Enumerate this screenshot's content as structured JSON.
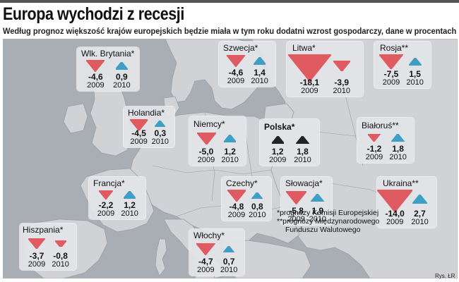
{
  "header": {
    "title": "Europa wychodzi z recesji",
    "subtitle": "Według prognoz większość krajów europejskich będzie miała w tym roku dodatni wzrost gospodarczy, dane w procentach"
  },
  "years": [
    "2009",
    "2010"
  ],
  "colors": {
    "decline": "#e05a62",
    "growth": "#3f9fc4",
    "poland": "#222222",
    "card": "#e2e4e7",
    "map_water": "#a9aeb4",
    "map_land": "#d0d2d5"
  },
  "countries": [
    {
      "id": "uk",
      "name": "Wlk. Brytania*",
      "bold": false,
      "v2009": "-4,6",
      "v2010": "0,9",
      "n2009": -4.6,
      "n2010": 0.9
    },
    {
      "id": "sweden",
      "name": "Szwecja*",
      "bold": false,
      "v2009": "-4,6",
      "v2010": "1,4",
      "n2009": -4.6,
      "n2010": 1.4
    },
    {
      "id": "lithuania",
      "name": "Litwa*",
      "bold": false,
      "v2009": "-18,1",
      "v2010": "-3,9",
      "n2009": -18.1,
      "n2010": -3.9
    },
    {
      "id": "russia",
      "name": "Rosja**",
      "bold": false,
      "v2009": "-7,5",
      "v2010": "1,5",
      "n2009": -7.5,
      "n2010": 1.5
    },
    {
      "id": "netherlands",
      "name": "Holandia*",
      "bold": false,
      "v2009": "-4,5",
      "v2010": "0,3",
      "n2009": -4.5,
      "n2010": 0.3
    },
    {
      "id": "germany",
      "name": "Niemcy*",
      "bold": false,
      "v2009": "-5,0",
      "v2010": "1,2",
      "n2009": -5.0,
      "n2010": 1.2
    },
    {
      "id": "poland",
      "name": "Polska*",
      "bold": true,
      "v2009": "1,2",
      "v2010": "1,8",
      "n2009": 1.2,
      "n2010": 1.8
    },
    {
      "id": "belarus",
      "name": "Białoruś**",
      "bold": false,
      "v2009": "-1,2",
      "v2010": "1,8",
      "n2009": -1.2,
      "n2010": 1.8
    },
    {
      "id": "france",
      "name": "Francja*",
      "bold": false,
      "v2009": "-2,2",
      "v2010": "1,2",
      "n2009": -2.2,
      "n2010": 1.2
    },
    {
      "id": "czech",
      "name": "Czechy*",
      "bold": false,
      "v2009": "-4,8",
      "v2010": "0,8",
      "n2009": -4.8,
      "n2010": 0.8
    },
    {
      "id": "slovakia",
      "name": "Słowacja*",
      "bold": false,
      "v2009": "-5,8",
      "v2010": "1,9",
      "n2009": -5.8,
      "n2010": 1.9
    },
    {
      "id": "ukraine",
      "name": "Ukraina**",
      "bold": false,
      "v2009": "-14,0",
      "v2010": "2,7",
      "n2009": -14.0,
      "n2010": 2.7
    },
    {
      "id": "spain",
      "name": "Hiszpania*",
      "bold": false,
      "v2009": "-3,7",
      "v2010": "-0,8",
      "n2009": -3.7,
      "n2010": -0.8
    },
    {
      "id": "italy",
      "name": "Włochy*",
      "bold": false,
      "v2009": "-4,7",
      "v2010": "0,7",
      "n2009": -4.7,
      "n2010": 0.7
    }
  ],
  "footnotes": {
    "line1": "*prognozy Komisji Europejskiej",
    "line2": "**prognozy Międzynarodowego",
    "line3": "Funduszu Walutowego"
  },
  "credit": "Rys. ŁR"
}
